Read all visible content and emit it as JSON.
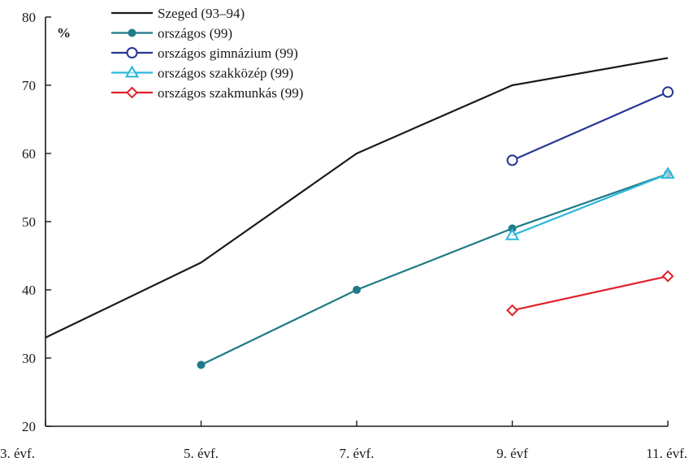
{
  "chart_data": {
    "type": "line",
    "title": "",
    "xlabel": "",
    "ylabel": "%",
    "categories": [
      "3. évf.",
      "5. évf.",
      "7. évf.",
      "9. évf",
      "11. évf."
    ],
    "ylim": [
      20,
      80
    ],
    "yticks": [
      20,
      30,
      40,
      50,
      60,
      70,
      80
    ],
    "grid": false,
    "legend_position": "top-left",
    "series": [
      {
        "name": "Szeged (93–94)",
        "color": "#1a1a1a",
        "marker": "none",
        "values": [
          33,
          44,
          60,
          70,
          74
        ]
      },
      {
        "name": "országos (99)",
        "color": "#1f7b87",
        "marker": "filled-circle",
        "values": [
          null,
          29,
          40,
          49,
          57
        ]
      },
      {
        "name": "országos gimnázium (99)",
        "color": "#283593",
        "marker": "open-circle",
        "values": [
          null,
          null,
          null,
          59,
          69
        ]
      },
      {
        "name": "országos szakközép (99)",
        "color": "#2ab8dc",
        "marker": "open-triangle",
        "values": [
          null,
          null,
          null,
          48,
          57
        ]
      },
      {
        "name": "országos szakmunkás (99)",
        "color": "#e0202a",
        "marker": "open-diamond",
        "values": [
          null,
          null,
          null,
          37,
          42
        ]
      }
    ]
  }
}
